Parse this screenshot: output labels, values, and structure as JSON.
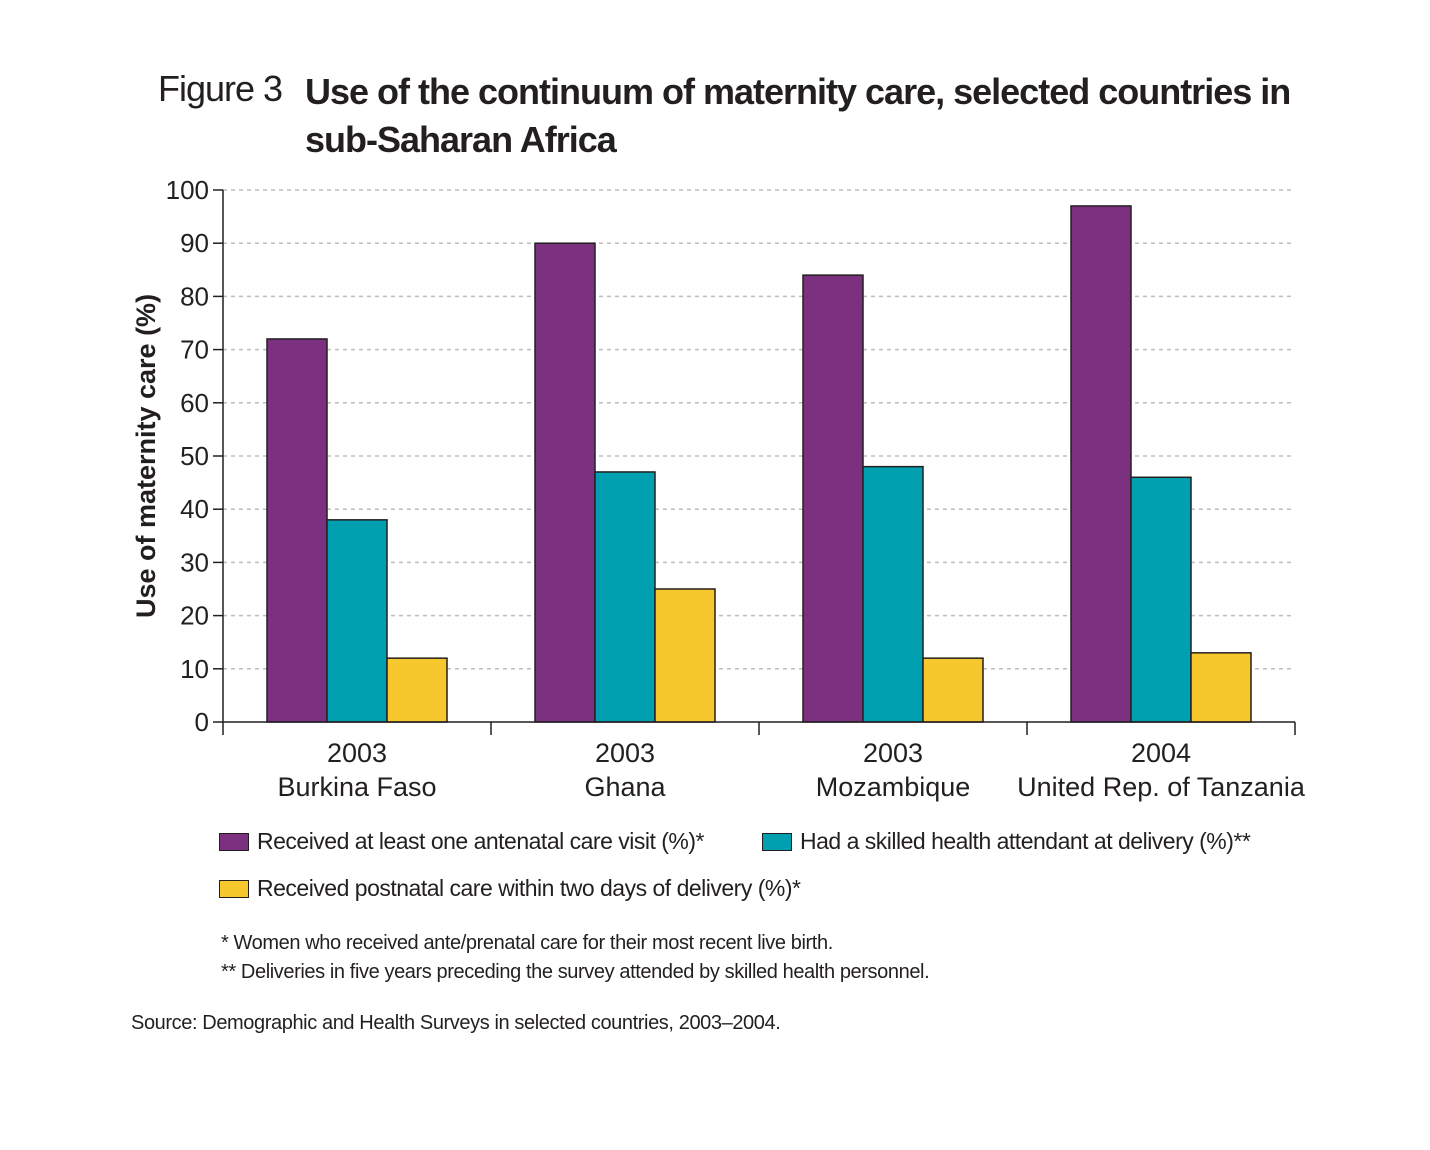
{
  "figure_label": "Figure 3",
  "title": "Use of the continuum of maternity care, selected countries in sub-Saharan Africa",
  "chart_data": {
    "type": "bar",
    "categories": [
      {
        "year": "2003",
        "country": "Burkina Faso"
      },
      {
        "year": "2003",
        "country": "Ghana"
      },
      {
        "year": "2003",
        "country": "Mozambique"
      },
      {
        "year": "2004",
        "country": "United Rep. of Tanzania"
      }
    ],
    "series": [
      {
        "name": "Received at least one antenatal care visit (%)*",
        "color": "#7b3180",
        "values": [
          72,
          90,
          84,
          97
        ]
      },
      {
        "name": "Had a skilled health attendant at delivery (%)**",
        "color": "#00a0b0",
        "values": [
          38,
          47,
          48,
          46
        ]
      },
      {
        "name": "Received postnatal care within two days of delivery (%)*",
        "color": "#f6c82d",
        "values": [
          12,
          25,
          12,
          13
        ]
      }
    ],
    "ylabel": "Use of maternity care (%)",
    "ylim": [
      0,
      100
    ],
    "yticks": [
      0,
      10,
      20,
      30,
      40,
      50,
      60,
      70,
      80,
      90,
      100
    ],
    "grid": true,
    "legend_position": "bottom"
  },
  "notes": [
    "* Women who received ante/prenatal care for their most recent live birth.",
    "** Deliveries in five years preceding the survey attended by skilled health personnel."
  ],
  "source": "Source: Demographic and Health Surveys in selected countries, 2003–2004."
}
